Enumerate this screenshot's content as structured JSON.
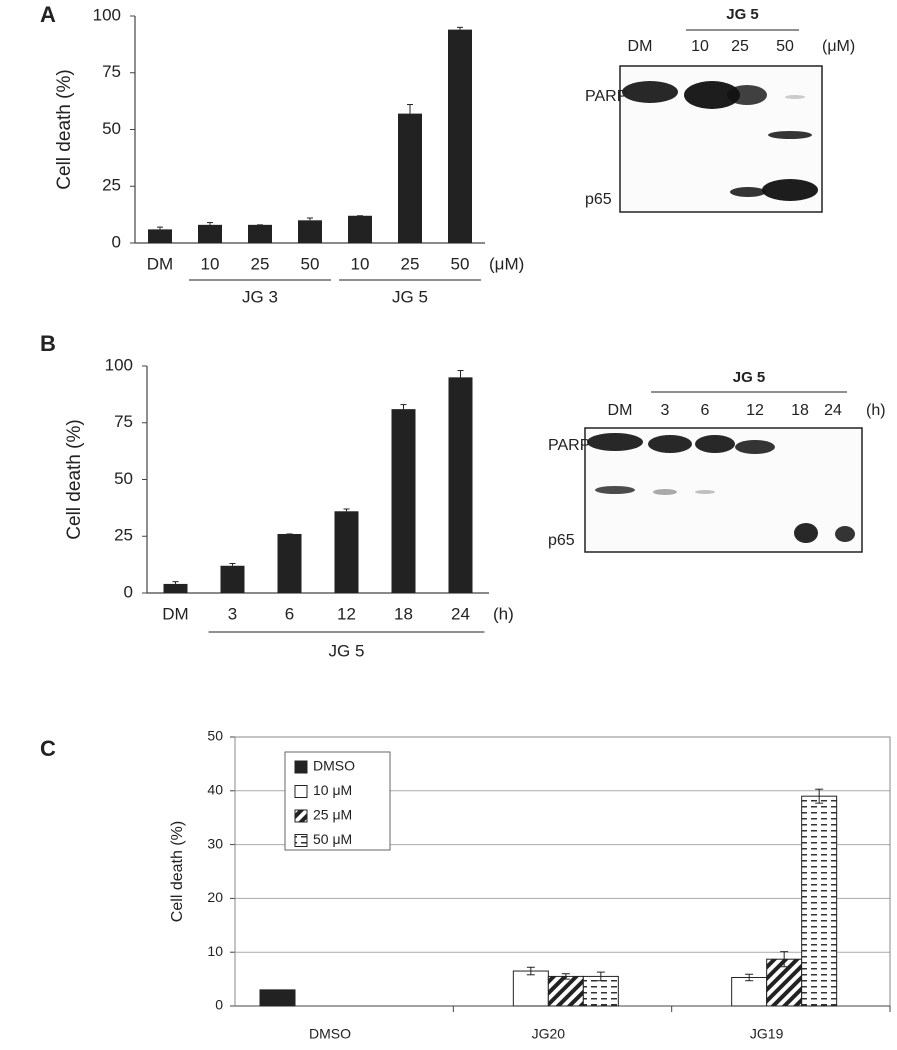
{
  "chart_data": [
    {
      "type": "bar",
      "panel": "A",
      "y_label": "Cell death (%)",
      "categories": [
        "DM",
        "10",
        "25",
        "50",
        "10",
        "25",
        "50"
      ],
      "group_labels": [
        null,
        "JG 3",
        "JG 3",
        "JG 3",
        "JG 5",
        "JG 5",
        "JG 5"
      ],
      "unit": "(μM)",
      "values": [
        6,
        8,
        8,
        10,
        12,
        57,
        94
      ],
      "errors": [
        1,
        1,
        0,
        1,
        0,
        4,
        1
      ],
      "color": "#222222",
      "ylim": [
        0,
        100
      ],
      "yticks": [
        0,
        25,
        50,
        75,
        100
      ]
    },
    {
      "type": "bar",
      "panel": "B",
      "y_label": "Cell death (%)",
      "categories": [
        "DM",
        "3",
        "6",
        "12",
        "18",
        "24"
      ],
      "group_labels": [
        null,
        "JG 5",
        "JG 5",
        "JG 5",
        "JG 5",
        "JG 5"
      ],
      "unit": "(h)",
      "values": [
        4,
        12,
        26,
        36,
        81,
        95
      ],
      "errors": [
        1,
        1,
        0,
        1,
        2,
        3
      ],
      "color": "#222222",
      "ylim": [
        0,
        100
      ],
      "yticks": [
        0,
        25,
        50,
        75,
        100
      ]
    },
    {
      "type": "grouped_bar",
      "panel": "C",
      "y_label": "Cell death (%)",
      "categories": [
        "DMSO",
        "JG20",
        "JG19"
      ],
      "series": [
        {
          "name": "DMSO",
          "color": "#222222",
          "pattern": "solid",
          "values": [
            3,
            null,
            null
          ]
        },
        {
          "name": "10 μM",
          "color": "#ffffff",
          "pattern": "solid",
          "values": [
            null,
            6.5,
            5.3
          ],
          "errors": [
            null,
            0.7,
            0.6
          ]
        },
        {
          "name": "25 μM",
          "color": "#222222",
          "pattern": "hatch",
          "values": [
            null,
            5.5,
            8.7
          ],
          "errors": [
            null,
            0.5,
            1.4
          ]
        },
        {
          "name": "50 μM",
          "color": "#222222",
          "pattern": "dash",
          "values": [
            null,
            5.5,
            39
          ],
          "errors": [
            null,
            0.8,
            1.3
          ]
        }
      ],
      "ylim": [
        0,
        50
      ],
      "yticks": [
        0,
        10,
        20,
        30,
        40,
        50
      ],
      "grid": true,
      "legend": "top-left"
    }
  ],
  "blots": [
    {
      "lanes": [
        "DM",
        "10",
        "25",
        "50"
      ],
      "lane_groups": [
        null,
        "JG 5",
        "JG 5",
        "JG 5"
      ],
      "unit": "(μM)",
      "rows": [
        "PARP",
        "p65"
      ]
    },
    {
      "lanes": [
        "DM",
        "3",
        "6",
        "12",
        "18",
        "24"
      ],
      "lane_groups": [
        null,
        "JG 5",
        "JG 5",
        "JG 5",
        "JG 5",
        "JG 5"
      ],
      "unit": "(h)",
      "rows": [
        "PARP",
        "p65"
      ]
    }
  ]
}
